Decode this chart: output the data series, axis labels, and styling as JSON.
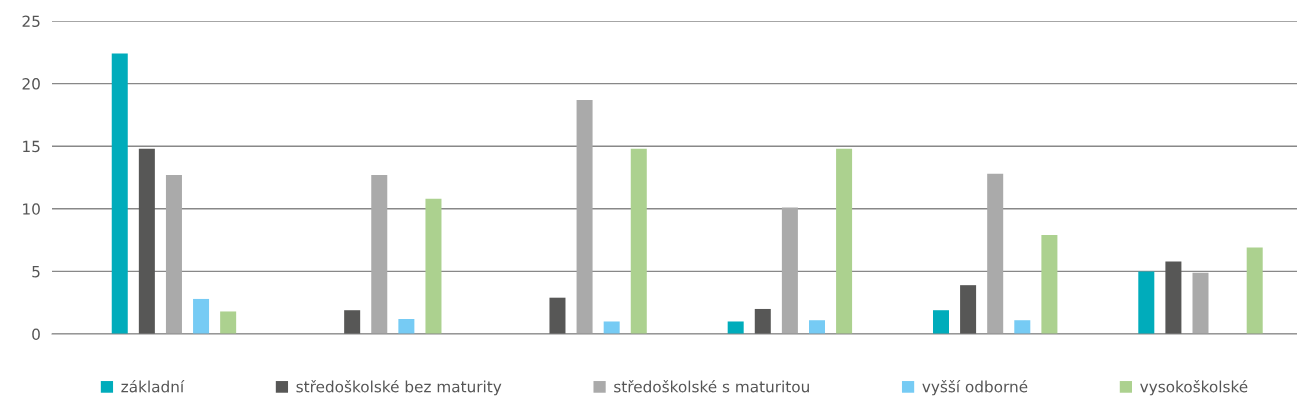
{
  "chart_data": {
    "type": "bar",
    "categories": [
      null,
      null,
      null,
      null,
      null,
      null
    ],
    "series": [
      {
        "name": "základní",
        "color": "#00acbb",
        "values": [
          22.4,
          null,
          null,
          1.0,
          1.9,
          5.0
        ]
      },
      {
        "name": "středoškolské bez maturity",
        "color": "#575756",
        "values": [
          14.8,
          1.9,
          2.9,
          2.0,
          3.9,
          5.8
        ]
      },
      {
        "name": "středoškolské s maturitou",
        "color": "#aaaaaa",
        "values": [
          12.7,
          12.7,
          18.7,
          10.1,
          12.8,
          4.9
        ]
      },
      {
        "name": "vyšší odborné",
        "color": "#76cbf4",
        "values": [
          2.8,
          1.2,
          1.0,
          1.1,
          1.1,
          null
        ]
      },
      {
        "name": "vysokoškolské",
        "color": "#acd18f",
        "values": [
          1.8,
          10.8,
          14.8,
          14.8,
          7.9,
          6.9
        ]
      }
    ],
    "ylim": [
      0,
      25
    ],
    "yticks": [
      0,
      5,
      10,
      15,
      20,
      25
    ],
    "grid": "y",
    "legend": "bottom"
  }
}
